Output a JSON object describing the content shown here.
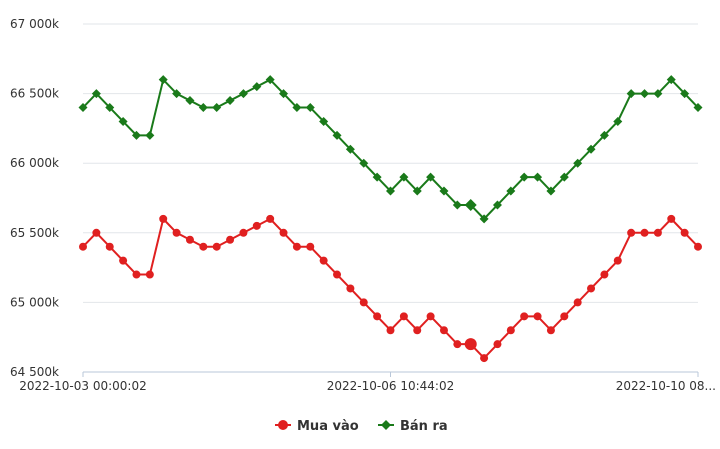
{
  "chart_data": {
    "type": "line",
    "title": "",
    "xlabel": "",
    "ylabel": "",
    "x_ticks": [
      "2022-10-03 00:00:02",
      "2022-10-06 10:44:02",
      "2022-10-10 08..."
    ],
    "y_ticks": [
      "64 500k",
      "65 000k",
      "65 500k",
      "66 000k",
      "66 500k",
      "67 000k"
    ],
    "ylim": [
      64500,
      67000
    ],
    "grid": "horizontal",
    "legend_position": "bottom-center",
    "series": [
      {
        "name": "Mua vào",
        "color": "#e02020",
        "marker": "circle",
        "values": [
          65400,
          65500,
          65400,
          65300,
          65200,
          65200,
          65600,
          65500,
          65450,
          65400,
          65400,
          65450,
          65500,
          65550,
          65600,
          65500,
          65400,
          65400,
          65300,
          65200,
          65100,
          65000,
          64900,
          64800,
          64900,
          64800,
          64900,
          64800,
          64700,
          64700,
          64600,
          64700,
          64800,
          64900,
          64900,
          64800,
          64900,
          65000,
          65100,
          65200,
          65300,
          65500,
          65500,
          65500,
          65600,
          65500,
          65400
        ]
      },
      {
        "name": "Bán ra",
        "color": "#1a7a1a",
        "marker": "diamond",
        "values": [
          66400,
          66500,
          66400,
          66300,
          66200,
          66200,
          66600,
          66500,
          66450,
          66400,
          66400,
          66450,
          66500,
          66550,
          66600,
          66500,
          66400,
          66400,
          66300,
          66200,
          66100,
          66000,
          65900,
          65800,
          65900,
          65800,
          65900,
          65800,
          65700,
          65700,
          65600,
          65700,
          65800,
          65900,
          65900,
          65800,
          65900,
          66000,
          66100,
          66200,
          66300,
          66500,
          66500,
          66500,
          66600,
          66500,
          66400
        ]
      }
    ]
  }
}
